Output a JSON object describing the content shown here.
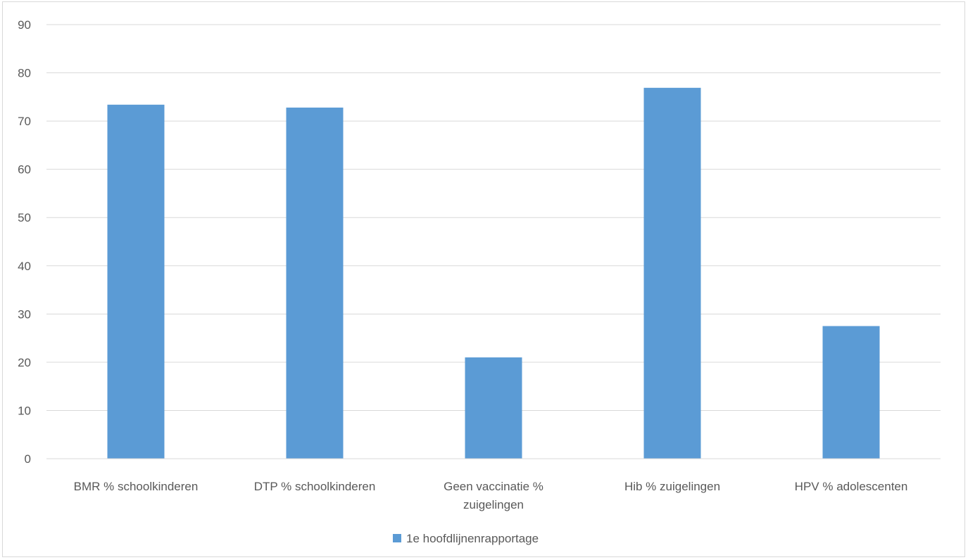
{
  "chart_data": {
    "type": "bar",
    "title": "",
    "xlabel": "",
    "ylabel": "",
    "categories": [
      [
        "BMR % schoolkinderen"
      ],
      [
        "DTP % schoolkinderen"
      ],
      [
        "Geen vaccinatie %",
        "zuigelingen"
      ],
      [
        "Hib % zuigelingen"
      ],
      [
        "HPV % adolescenten"
      ]
    ],
    "series": [
      {
        "name": "1e hoofdlijnenrapportage",
        "values": [
          73.4,
          72.8,
          21.0,
          76.9,
          27.5
        ],
        "color": "#5b9bd5"
      }
    ],
    "ylim": [
      0,
      90
    ],
    "yticks": [
      0,
      10,
      20,
      30,
      40,
      50,
      60,
      70,
      80,
      90
    ],
    "grid": true,
    "legend": "bottom-center",
    "colors": {
      "bar": "#5b9bd5",
      "grid": "#d9d9d9",
      "text": "#595959"
    }
  }
}
